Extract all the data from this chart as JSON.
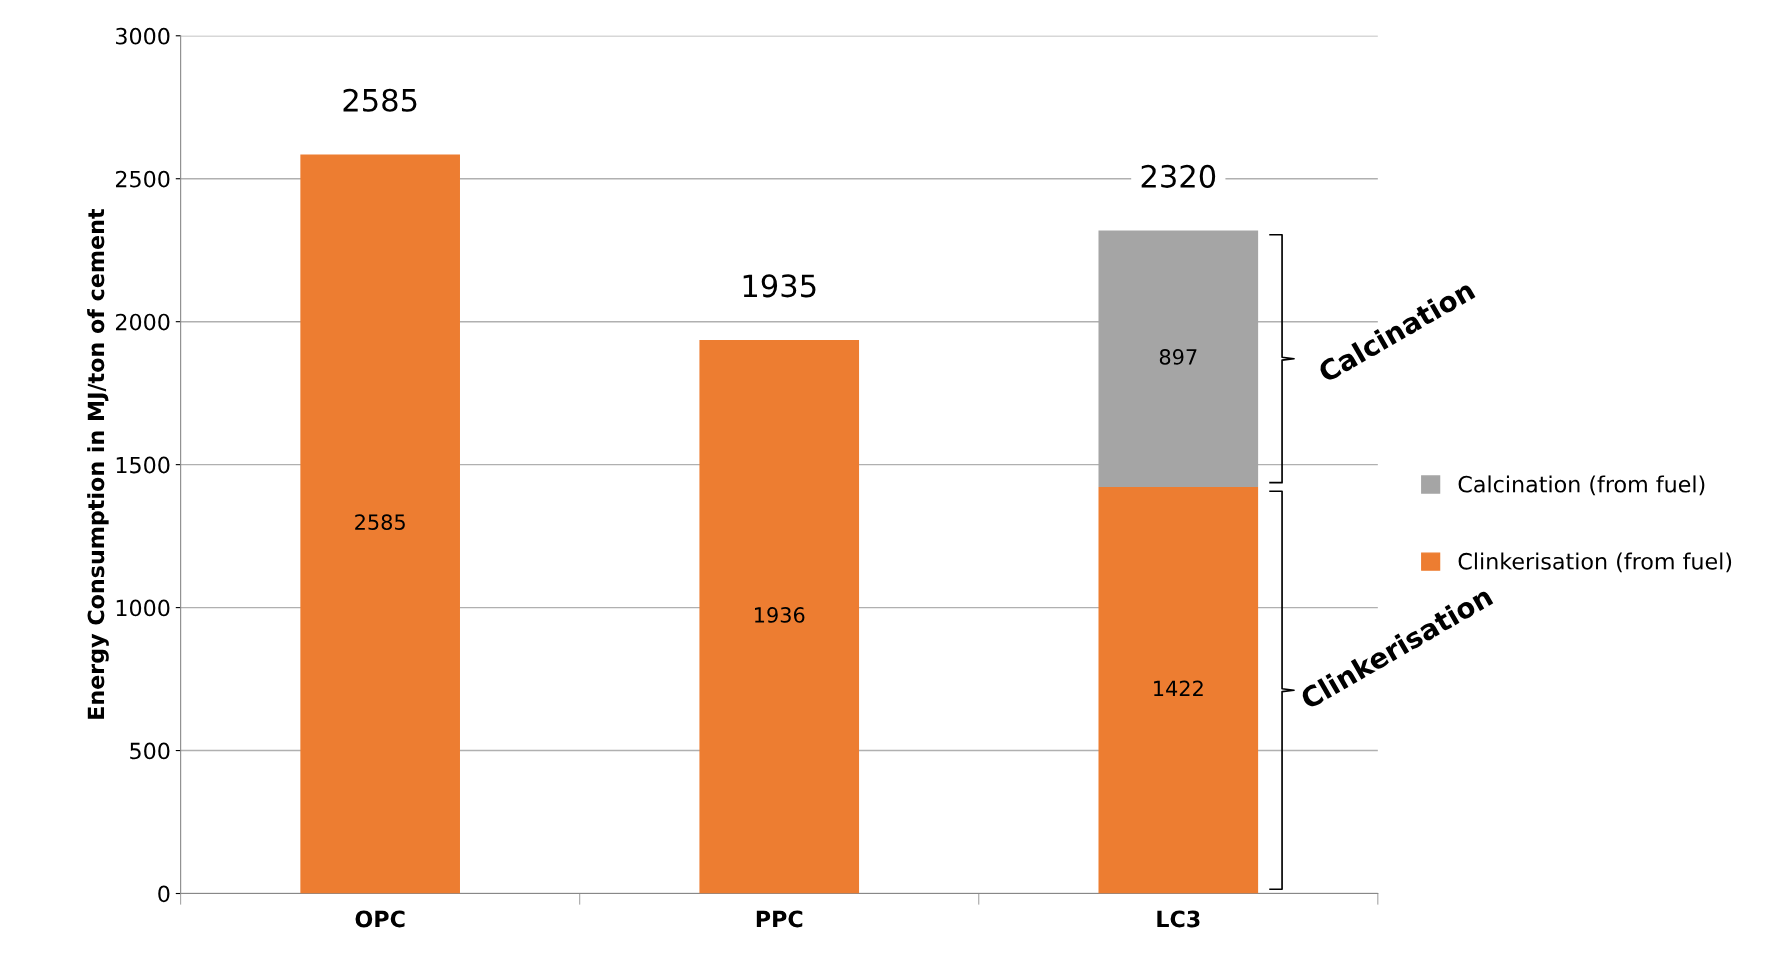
{
  "chart_data": {
    "type": "bar",
    "stacked": true,
    "categories": [
      "OPC",
      "PPC",
      "LC3"
    ],
    "series": [
      {
        "name": "Clinkerisation (from fuel)",
        "color": "#ed7d31",
        "values": [
          2585,
          1936,
          1422
        ]
      },
      {
        "name": "Calcination (from fuel)",
        "color": "#a5a5a5",
        "values": [
          null,
          null,
          897
        ]
      }
    ],
    "ylabel": "Energy Consumption in MJ/ton of cement",
    "ylim": [
      0,
      3000
    ],
    "yticks": [
      0,
      500,
      1000,
      1500,
      2000,
      2500,
      3000
    ],
    "grid": "y",
    "legend": "right",
    "data_labels": true,
    "totals": [
      "2585",
      "1935",
      "2320"
    ],
    "annotations": [
      "Calcination",
      "Clinkerisation"
    ]
  }
}
